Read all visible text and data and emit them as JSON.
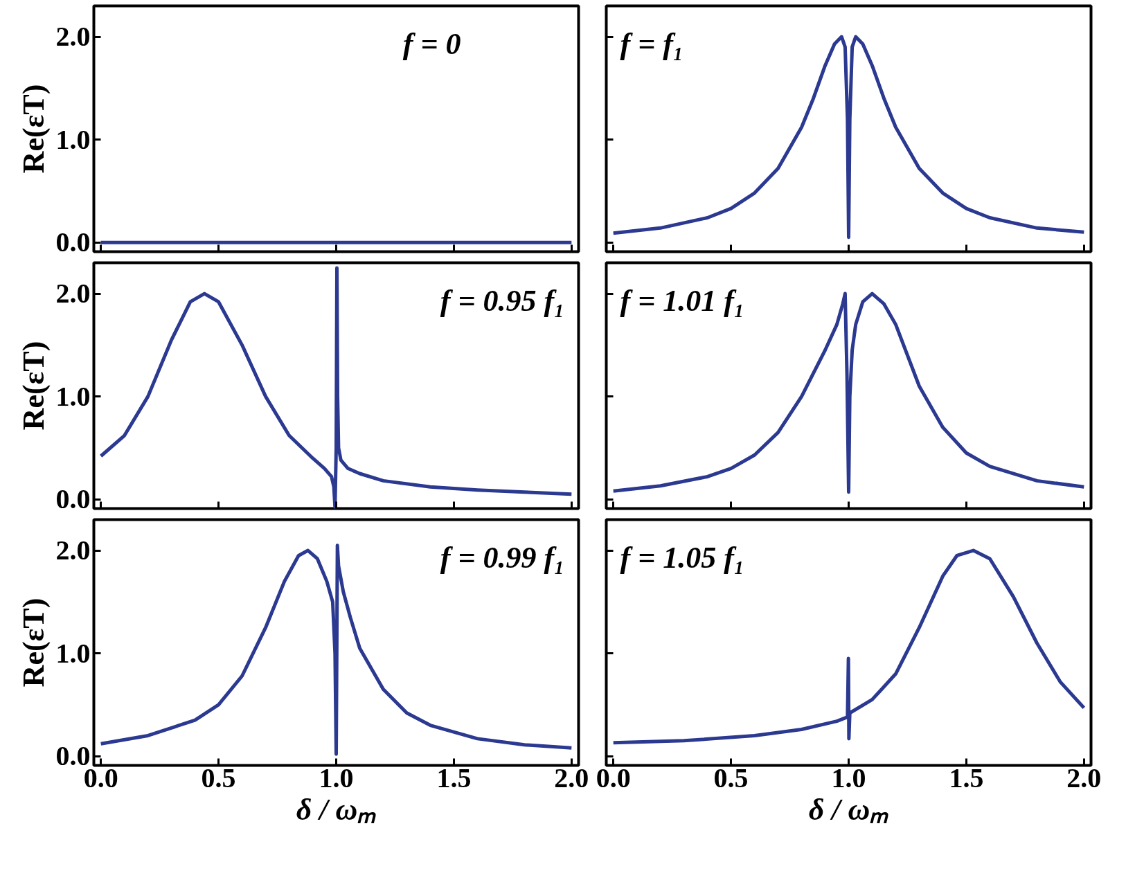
{
  "chart_data": [
    {
      "type": "line",
      "x": [
        0,
        2
      ],
      "series": [
        {
          "color": "#2b3990",
          "values": [
            0,
            0
          ]
        }
      ],
      "xlim": [
        -0.03,
        2.03
      ],
      "ylim": [
        -0.09,
        2.3
      ],
      "xticks": [
        {
          "value": 0,
          "label": null
        },
        {
          "value": 0.5,
          "label": null
        },
        {
          "value": 1,
          "label": null
        },
        {
          "value": 1.5,
          "label": null
        },
        {
          "value": 2,
          "label": null
        }
      ],
      "yticks": [
        {
          "value": 0,
          "label": "0.0"
        },
        {
          "value": 1,
          "label": "1.0"
        },
        {
          "value": 2,
          "label": "2.0"
        }
      ],
      "tick_labels": "y",
      "ylabel": "Re(εT)",
      "annotations": [
        "f = 0"
      ]
    },
    {
      "type": "line",
      "x": [
        0,
        0.2,
        0.4,
        0.5,
        0.6,
        0.7,
        0.8,
        0.85,
        0.9,
        0.94,
        0.97,
        0.985,
        0.995,
        1.0,
        1.005,
        1.015,
        1.03,
        1.06,
        1.1,
        1.15,
        1.2,
        1.3,
        1.4,
        1.5,
        1.6,
        1.8,
        2.0
      ],
      "series": [
        {
          "color": "#2b3990",
          "values": [
            0.09,
            0.14,
            0.24,
            0.33,
            0.48,
            0.72,
            1.12,
            1.4,
            1.72,
            1.93,
            2.0,
            1.9,
            1.2,
            0.05,
            1.2,
            1.9,
            2.0,
            1.93,
            1.72,
            1.4,
            1.12,
            0.72,
            0.48,
            0.33,
            0.24,
            0.14,
            0.1
          ]
        }
      ],
      "xlim": [
        -0.03,
        2.03
      ],
      "ylim": [
        -0.09,
        2.3
      ],
      "xticks": [
        {
          "value": 0,
          "label": null
        },
        {
          "value": 0.5,
          "label": null
        },
        {
          "value": 1,
          "label": null
        },
        {
          "value": 1.5,
          "label": null
        },
        {
          "value": 2,
          "label": null
        }
      ],
      "yticks": [
        {
          "value": 0,
          "label": null
        },
        {
          "value": 1,
          "label": null
        },
        {
          "value": 2,
          "label": null
        }
      ],
      "tick_labels": false,
      "annotations": [
        "f = f₁"
      ]
    },
    {
      "type": "line",
      "x": [
        0,
        0.1,
        0.2,
        0.3,
        0.38,
        0.44,
        0.5,
        0.6,
        0.7,
        0.8,
        0.9,
        0.95,
        0.98,
        0.99,
        0.995,
        1.0,
        1.003,
        1.006,
        1.01,
        1.02,
        1.05,
        1.1,
        1.2,
        1.4,
        1.6,
        1.8,
        2.0
      ],
      "series": [
        {
          "color": "#2b3990",
          "values": [
            0.42,
            0.62,
            1.0,
            1.55,
            1.92,
            2.0,
            1.92,
            1.5,
            1.0,
            0.62,
            0.4,
            0.3,
            0.22,
            0.12,
            -0.08,
            0.5,
            2.25,
            1.0,
            0.5,
            0.38,
            0.3,
            0.25,
            0.18,
            0.12,
            0.09,
            0.07,
            0.05
          ]
        }
      ],
      "xlim": [
        -0.03,
        2.03
      ],
      "ylim": [
        -0.09,
        2.3
      ],
      "xticks": [
        {
          "value": 0,
          "label": null
        },
        {
          "value": 0.5,
          "label": null
        },
        {
          "value": 1,
          "label": null
        },
        {
          "value": 1.5,
          "label": null
        },
        {
          "value": 2,
          "label": null
        }
      ],
      "yticks": [
        {
          "value": 0,
          "label": "0.0"
        },
        {
          "value": 1,
          "label": "1.0"
        },
        {
          "value": 2,
          "label": "2.0"
        }
      ],
      "tick_labels": "y",
      "ylabel": "Re(εT)",
      "annotations": [
        "f = 0.95 f₁"
      ]
    },
    {
      "type": "line",
      "x": [
        0,
        0.2,
        0.4,
        0.5,
        0.6,
        0.7,
        0.8,
        0.9,
        0.95,
        0.975,
        0.985,
        0.993,
        1.0,
        1.005,
        1.015,
        1.03,
        1.06,
        1.1,
        1.15,
        1.2,
        1.3,
        1.4,
        1.5,
        1.6,
        1.8,
        2.0
      ],
      "series": [
        {
          "color": "#2b3990",
          "values": [
            0.08,
            0.13,
            0.22,
            0.3,
            0.43,
            0.65,
            1.0,
            1.45,
            1.7,
            1.9,
            2.0,
            1.2,
            0.07,
            1.0,
            1.45,
            1.7,
            1.92,
            2.0,
            1.9,
            1.7,
            1.1,
            0.7,
            0.45,
            0.32,
            0.18,
            0.12
          ]
        }
      ],
      "xlim": [
        -0.03,
        2.03
      ],
      "ylim": [
        -0.09,
        2.3
      ],
      "xticks": [
        {
          "value": 0,
          "label": null
        },
        {
          "value": 0.5,
          "label": null
        },
        {
          "value": 1,
          "label": null
        },
        {
          "value": 1.5,
          "label": null
        },
        {
          "value": 2,
          "label": null
        }
      ],
      "yticks": [
        {
          "value": 0,
          "label": null
        },
        {
          "value": 1,
          "label": null
        },
        {
          "value": 2,
          "label": null
        }
      ],
      "tick_labels": false,
      "annotations": [
        "f = 1.01 f₁"
      ]
    },
    {
      "type": "line",
      "x": [
        0,
        0.2,
        0.4,
        0.5,
        0.6,
        0.7,
        0.78,
        0.84,
        0.88,
        0.92,
        0.96,
        0.985,
        0.995,
        1.0,
        1.005,
        1.01,
        1.03,
        1.06,
        1.1,
        1.2,
        1.3,
        1.4,
        1.6,
        1.8,
        2.0
      ],
      "series": [
        {
          "color": "#2b3990",
          "values": [
            0.12,
            0.2,
            0.35,
            0.5,
            0.78,
            1.25,
            1.7,
            1.95,
            2.0,
            1.92,
            1.7,
            1.5,
            1.0,
            0.02,
            2.05,
            1.85,
            1.6,
            1.35,
            1.05,
            0.65,
            0.42,
            0.3,
            0.17,
            0.11,
            0.08
          ]
        }
      ],
      "xlim": [
        -0.03,
        2.03
      ],
      "ylim": [
        -0.09,
        2.3
      ],
      "xticks": [
        {
          "value": 0,
          "label": "0.0"
        },
        {
          "value": 0.5,
          "label": "0.5"
        },
        {
          "value": 1,
          "label": "1.0"
        },
        {
          "value": 1.5,
          "label": "1.5"
        },
        {
          "value": 2,
          "label": "2.0"
        }
      ],
      "yticks": [
        {
          "value": 0,
          "label": "0.0"
        },
        {
          "value": 1,
          "label": "1.0"
        },
        {
          "value": 2,
          "label": "2.0"
        }
      ],
      "xlabel": "δ / ωₘ",
      "ylabel": "Re(εT)",
      "annotations": [
        "f = 0.99 f₁"
      ]
    },
    {
      "type": "line",
      "x": [
        0,
        0.3,
        0.6,
        0.8,
        0.95,
        0.995,
        0.999,
        1.001,
        1.005,
        1.1,
        1.2,
        1.3,
        1.4,
        1.46,
        1.53,
        1.6,
        1.7,
        1.8,
        1.9,
        2.0
      ],
      "series": [
        {
          "color": "#2b3990",
          "values": [
            0.13,
            0.15,
            0.2,
            0.26,
            0.34,
            0.38,
            0.95,
            0.17,
            0.42,
            0.55,
            0.8,
            1.25,
            1.75,
            1.95,
            2.0,
            1.92,
            1.55,
            1.1,
            0.72,
            0.47
          ]
        }
      ],
      "xlim": [
        -0.03,
        2.03
      ],
      "ylim": [
        -0.09,
        2.3
      ],
      "xticks": [
        {
          "value": 0,
          "label": "0.0"
        },
        {
          "value": 0.5,
          "label": "0.5"
        },
        {
          "value": 1,
          "label": "1.0"
        },
        {
          "value": 1.5,
          "label": "1.5"
        },
        {
          "value": 2,
          "label": "2.0"
        }
      ],
      "yticks": [
        {
          "value": 0,
          "label": null
        },
        {
          "value": 1,
          "label": null
        },
        {
          "value": 2,
          "label": null
        }
      ],
      "tick_labels": "x",
      "xlabel": "δ / ωₘ",
      "annotations": [
        "f = 1.05 f₁"
      ]
    }
  ]
}
